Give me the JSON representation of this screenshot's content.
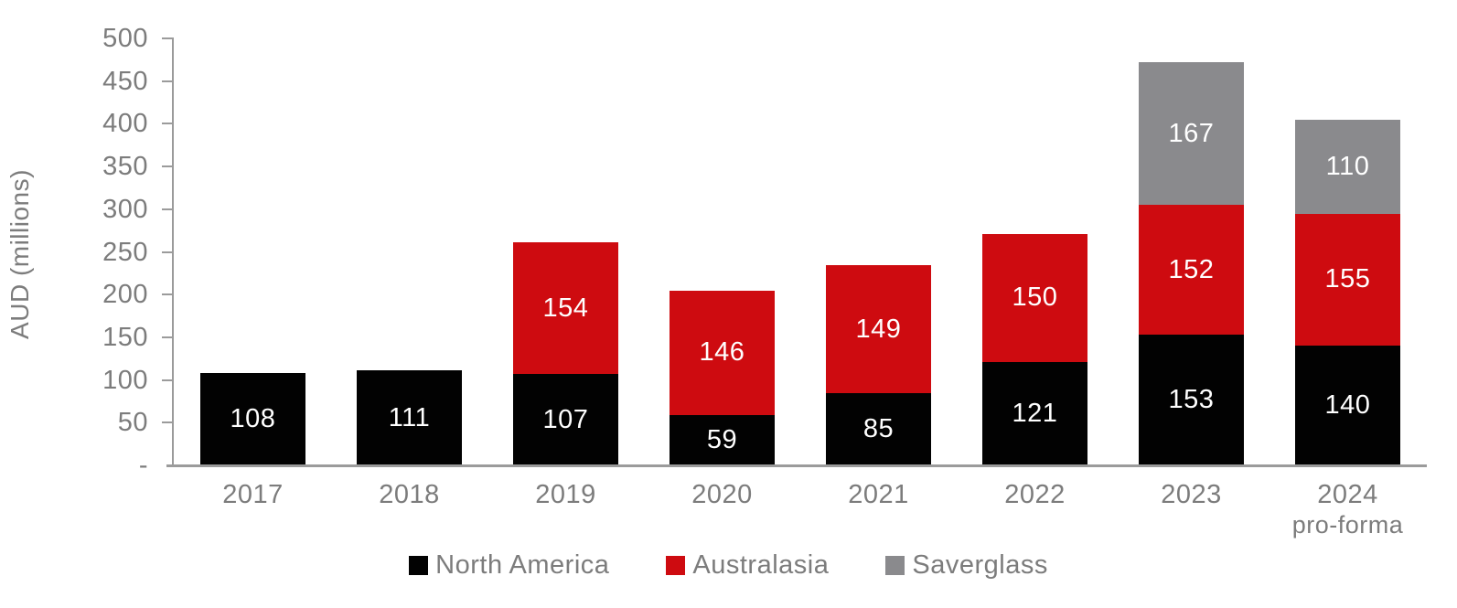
{
  "chart_data": {
    "type": "bar",
    "stacked": true,
    "title": "",
    "xlabel": "",
    "ylabel": "AUD (millions)",
    "ylim": [
      0,
      500
    ],
    "ytick_step": 50,
    "ytick_labels": [
      "-",
      "50",
      "100",
      "150",
      "200",
      "250",
      "300",
      "350",
      "400",
      "450",
      "500"
    ],
    "grid": false,
    "legend_position": "bottom",
    "categories": [
      {
        "label": "2017",
        "sublabel": ""
      },
      {
        "label": "2018",
        "sublabel": ""
      },
      {
        "label": "2019",
        "sublabel": ""
      },
      {
        "label": "2020",
        "sublabel": ""
      },
      {
        "label": "2021",
        "sublabel": ""
      },
      {
        "label": "2022",
        "sublabel": ""
      },
      {
        "label": "2023",
        "sublabel": ""
      },
      {
        "label": "2024",
        "sublabel": "pro-forma"
      }
    ],
    "series": [
      {
        "name": "North America",
        "color": "#020202",
        "values": [
          108,
          111,
          107,
          59,
          85,
          121,
          153,
          140
        ]
      },
      {
        "name": "Australasia",
        "color": "#ce0b10",
        "values": [
          null,
          null,
          154,
          146,
          149,
          150,
          152,
          155
        ]
      },
      {
        "name": "Saverglass",
        "color": "#8a8a8d",
        "values": [
          null,
          null,
          null,
          null,
          null,
          null,
          167,
          110
        ]
      }
    ]
  },
  "colors": {
    "axis_line": "#9b9b9b",
    "axis_text": "#7c7c7c",
    "bar_label_text": "#ffffff",
    "background": "#ffffff"
  }
}
